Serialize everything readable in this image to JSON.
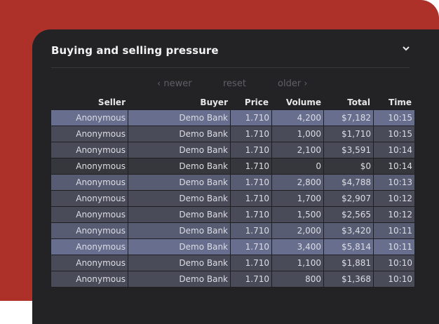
{
  "widget": {
    "title": "Buying and selling pressure",
    "collapse_icon": "chevron-down-icon"
  },
  "pager": {
    "newer": "‹ newer",
    "reset": "reset",
    "older": "older ›"
  },
  "table": {
    "columns": [
      "Seller",
      "Buyer",
      "Price",
      "Volume",
      "Total",
      "Time"
    ],
    "rows": [
      {
        "seller": "Anonymous",
        "buyer": "Demo Bank",
        "price": "1.710",
        "volume": "4,200",
        "total": "$7,182",
        "time": "10:15",
        "shade": 0
      },
      {
        "seller": "Anonymous",
        "buyer": "Demo Bank",
        "price": "1.710",
        "volume": "1,000",
        "total": "$1,710",
        "time": "10:15",
        "shade": 2
      },
      {
        "seller": "Anonymous",
        "buyer": "Demo Bank",
        "price": "1.710",
        "volume": "2,100",
        "total": "$3,591",
        "time": "10:14",
        "shade": 2
      },
      {
        "seller": "Anonymous",
        "buyer": "Demo Bank",
        "price": "1.710",
        "volume": "0",
        "total": "$0",
        "time": "10:14",
        "shade": 3
      },
      {
        "seller": "Anonymous",
        "buyer": "Demo Bank",
        "price": "1.710",
        "volume": "2,800",
        "total": "$4,788",
        "time": "10:13",
        "shade": 1
      },
      {
        "seller": "Anonymous",
        "buyer": "Demo Bank",
        "price": "1.710",
        "volume": "1,700",
        "total": "$2,907",
        "time": "10:12",
        "shade": 2
      },
      {
        "seller": "Anonymous",
        "buyer": "Demo Bank",
        "price": "1.710",
        "volume": "1,500",
        "total": "$2,565",
        "time": "10:12",
        "shade": 2
      },
      {
        "seller": "Anonymous",
        "buyer": "Demo Bank",
        "price": "1.710",
        "volume": "2,000",
        "total": "$3,420",
        "time": "10:11",
        "shade": 1
      },
      {
        "seller": "Anonymous",
        "buyer": "Demo Bank",
        "price": "1.710",
        "volume": "3,400",
        "total": "$5,814",
        "time": "10:11",
        "shade": 0
      },
      {
        "seller": "Anonymous",
        "buyer": "Demo Bank",
        "price": "1.710",
        "volume": "1,100",
        "total": "$1,881",
        "time": "10:10",
        "shade": 2
      },
      {
        "seller": "Anonymous",
        "buyer": "Demo Bank",
        "price": "1.710",
        "volume": "800",
        "total": "$1,368",
        "time": "10:10",
        "shade": 2
      }
    ]
  },
  "colors": {
    "background_accent": "#ad3129",
    "panel": "#232325",
    "row_shade_0": "#676e8e",
    "row_shade_1": "#585c72",
    "row_shade_2": "#494b58",
    "row_shade_3": "#36373d"
  }
}
